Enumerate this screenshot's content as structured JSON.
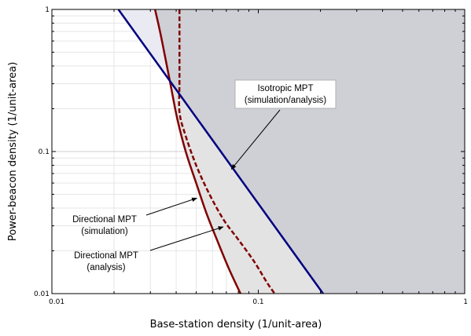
{
  "chart_data": {
    "type": "line",
    "x_scale": "log",
    "y_scale": "log",
    "xlim": [
      0.01,
      1
    ],
    "ylim": [
      0.01,
      1
    ],
    "xlabel": "Base-station density (1/unit-area)",
    "ylabel": "Power-beacon density (1/unit-area)",
    "x_ticks": [
      "0.01",
      "0.1",
      "1"
    ],
    "y_ticks": [
      "0.01",
      "0.1",
      "1"
    ],
    "grid": true,
    "colors": {
      "isotropic": "#000080",
      "directional": "#800000",
      "region_isotropic": "#cfcfd6",
      "region_directional": "#e3e3e3",
      "region_upper": "#eaeaf2"
    },
    "series": [
      {
        "key": "isotropic",
        "style": "solid",
        "x": [
          0.021,
          0.206
        ],
        "y": [
          1.0,
          0.01
        ]
      },
      {
        "key": "directional_sim",
        "style": "solid",
        "x": [
          0.0316,
          0.0334,
          0.0355,
          0.0375,
          0.0405,
          0.0445,
          0.05,
          0.056,
          0.063,
          0.072,
          0.082
        ],
        "y": [
          1.0,
          0.7,
          0.45,
          0.3,
          0.17,
          0.1,
          0.06,
          0.037,
          0.024,
          0.015,
          0.01
        ]
      },
      {
        "key": "directional_ana",
        "style": "dashed",
        "x": [
          0.0415,
          0.0415,
          0.0415,
          0.0415,
          0.044,
          0.05,
          0.058,
          0.068,
          0.08,
          0.095,
          0.11,
          0.12
        ],
        "y": [
          1.0,
          0.5,
          0.3,
          0.19,
          0.135,
          0.08,
          0.05,
          0.033,
          0.024,
          0.017,
          0.012,
          0.01
        ]
      }
    ],
    "annotations": [
      {
        "key": "isotropic",
        "lines": [
          "Isotropic MPT",
          "(simulation/analysis)"
        ],
        "arrow_to": [
          0.074,
          0.075
        ]
      },
      {
        "key": "directional_sim",
        "lines": [
          "Directional MPT",
          "(simulation)"
        ],
        "arrow_to": [
          0.0504,
          0.047
        ]
      },
      {
        "key": "directional_ana",
        "lines": [
          "Directional MPT",
          "(analysis)"
        ],
        "arrow_to": [
          0.0676,
          0.0295
        ]
      }
    ]
  }
}
